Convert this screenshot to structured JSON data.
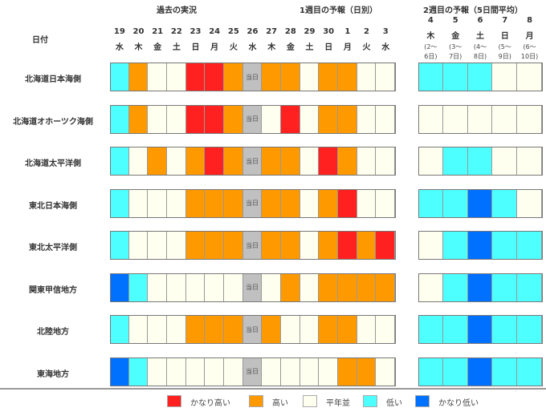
{
  "headers": {
    "past": "過去の実況",
    "week1": "1週目の予報（日別）",
    "week2": "2週目の予報（5日間平均）",
    "date_label": "日付",
    "today": "当日"
  },
  "colors": {
    "R": "#ff2020",
    "O": "#ff9900",
    "N": "#fffff0",
    "L": "#4dffff",
    "B": "#0070ff",
    "T": "#c0c0c0"
  },
  "chart_data": {
    "type": "heatmap",
    "days": [
      {
        "d": "19",
        "w": "水"
      },
      {
        "d": "20",
        "w": "木"
      },
      {
        "d": "21",
        "w": "金"
      },
      {
        "d": "22",
        "w": "土"
      },
      {
        "d": "23",
        "w": "日"
      },
      {
        "d": "24",
        "w": "月"
      },
      {
        "d": "25",
        "w": "火"
      },
      {
        "d": "26",
        "w": "水"
      },
      {
        "d": "27",
        "w": "木"
      },
      {
        "d": "28",
        "w": "金"
      },
      {
        "d": "29",
        "w": "土"
      },
      {
        "d": "30",
        "w": "日"
      },
      {
        "d": "1",
        "w": "月"
      },
      {
        "d": "2",
        "w": "火"
      },
      {
        "d": "3",
        "w": "水"
      }
    ],
    "week2": [
      {
        "d": "4",
        "w": "木",
        "r1": "(2～",
        "r2": "6日)"
      },
      {
        "d": "5",
        "w": "金",
        "r1": "(3～",
        "r2": "7日)"
      },
      {
        "d": "6",
        "w": "土",
        "r1": "(4～",
        "r2": "8日)"
      },
      {
        "d": "7",
        "w": "日",
        "r1": "(5～",
        "r2": "9日)"
      },
      {
        "d": "8",
        "w": "月",
        "r1": "(6～",
        "r2": "10日)"
      }
    ],
    "legend": [
      {
        "code": "R",
        "label": "かなり高い"
      },
      {
        "code": "O",
        "label": "高い"
      },
      {
        "code": "N",
        "label": "平年並"
      },
      {
        "code": "L",
        "label": "低い"
      },
      {
        "code": "B",
        "label": "かなり低い"
      }
    ],
    "rows": [
      {
        "name": "北海道日本海側",
        "daily": "LONNRROTOONOONN",
        "week2": "LLLNN"
      },
      {
        "name": "北海道オホーツク海側",
        "daily": "LONNRROTNRNOONN",
        "week2": "NNNNN"
      },
      {
        "name": "北海道太平洋側",
        "daily": "LNONOROTOONRONN",
        "week2": "NLLNN"
      },
      {
        "name": "東北日本海側",
        "daily": "LNNNOOOTOONORNN",
        "week2": "LLBLN"
      },
      {
        "name": "東北太平洋側",
        "daily": "LNNNOOOTOONOROR",
        "week2": "NLBLL"
      },
      {
        "name": "関東甲信地方",
        "daily": "BLNNNNNTNONOOOO",
        "week2": "NLBLL"
      },
      {
        "name": "北陸地方",
        "daily": "LNNNOOOTONNOONN",
        "week2": "LLBLL"
      },
      {
        "name": "東海地方",
        "daily": "BLNNNNNTNNNNOON",
        "week2": "LLBLL"
      }
    ]
  }
}
